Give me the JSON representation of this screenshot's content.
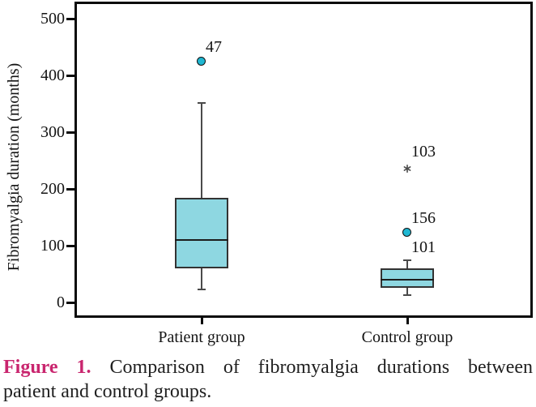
{
  "caption": {
    "label": "Figure 1.",
    "line1": "Comparison of fibromyalgia durations between",
    "line2": "patient and control groups.",
    "full_text": "Figure 1. Comparison of fibromyalgia durations between patient and control groups."
  },
  "chart_data": {
    "type": "boxplot",
    "title": "",
    "ylabel": "Fibromyalgia duration (months)",
    "xlabel": "",
    "ylim": [
      0,
      500
    ],
    "yticks": [
      0,
      100,
      200,
      300,
      400,
      500
    ],
    "grid": false,
    "categories": [
      "Patient group",
      "Control group"
    ],
    "series": [
      {
        "name": "Patient group",
        "whisker_low": 24,
        "q1": 60,
        "median": 110,
        "q3": 185,
        "whisker_high": 350,
        "outliers": [
          {
            "value": 425,
            "label": "47",
            "marker": "circle",
            "meaning": "outlier case 47"
          }
        ]
      },
      {
        "name": "Control group",
        "whisker_low": 14,
        "q1": 26,
        "median": 40,
        "q3": 60,
        "whisker_high": 73,
        "outliers": [
          {
            "value": 240,
            "label": "103",
            "marker": "asterisk",
            "meaning": "extreme outlier case 103"
          },
          {
            "value": 123,
            "label": "156",
            "marker": "circle",
            "meaning": "outlier case 156"
          },
          {
            "value": 71,
            "label": "101",
            "marker": "none",
            "meaning": "outlier case 101 (marker overlaps whisker)"
          }
        ]
      }
    ],
    "colors": {
      "box_fill": "#8ED7E1",
      "box_border": "#333333",
      "median": "#1C1C1C",
      "whisker": "#4A4A4A",
      "outlier_fill": "#1FB7D2",
      "caption_accent": "#C9256E",
      "text": "#141414"
    }
  }
}
